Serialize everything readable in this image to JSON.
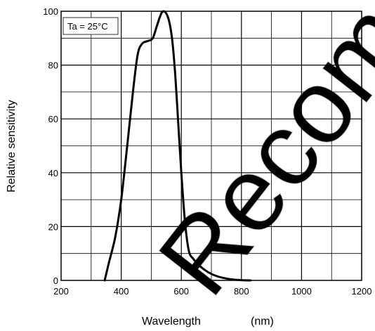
{
  "chart_data": {
    "type": "line",
    "title": "",
    "xlabel": "Wavelength",
    "xunit": "(nm)",
    "ylabel": "Relative sensitivity",
    "xlim": [
      200,
      1200
    ],
    "ylim": [
      0,
      100
    ],
    "x_major_ticks": [
      200,
      400,
      600,
      800,
      1000,
      1200
    ],
    "y_major_ticks": [
      0,
      20,
      40,
      60,
      80,
      100
    ],
    "x_grid_step": 100,
    "y_grid_step": 10,
    "grid": true,
    "annotation": "Ta = 25°C",
    "watermark": "Recom",
    "line_color": "#000000",
    "series": [
      {
        "x": [
          345,
          360,
          380,
          400,
          420,
          440,
          455,
          470,
          490,
          505,
          520,
          535,
          548,
          560,
          570,
          580,
          590,
          600,
          612,
          625,
          640,
          660,
          690,
          720,
          760,
          800,
          830
        ],
        "y": [
          0,
          7,
          16,
          30,
          50,
          71,
          84,
          88,
          89,
          90,
          95,
          99.5,
          99.5,
          96,
          89,
          76,
          58,
          40,
          22,
          11,
          8,
          5.5,
          3,
          1.5,
          0.5,
          0.1,
          0
        ]
      }
    ]
  }
}
